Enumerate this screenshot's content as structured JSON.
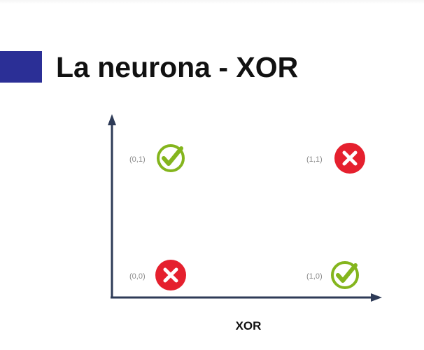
{
  "slide": {
    "title": "La neurona - XOR",
    "axis_caption": "XOR",
    "colors": {
      "accent_bar": "#2b2f96",
      "axis": "#2e3b57",
      "check": "#84b51d",
      "cross": "#e5202e"
    }
  },
  "points": [
    {
      "label": "(0,1)",
      "result": "check",
      "icon": "check-icon"
    },
    {
      "label": "(1,1)",
      "result": "cross",
      "icon": "cross-icon"
    },
    {
      "label": "(0,0)",
      "result": "cross",
      "icon": "cross-icon"
    },
    {
      "label": "(1,0)",
      "result": "check",
      "icon": "check-icon"
    }
  ]
}
